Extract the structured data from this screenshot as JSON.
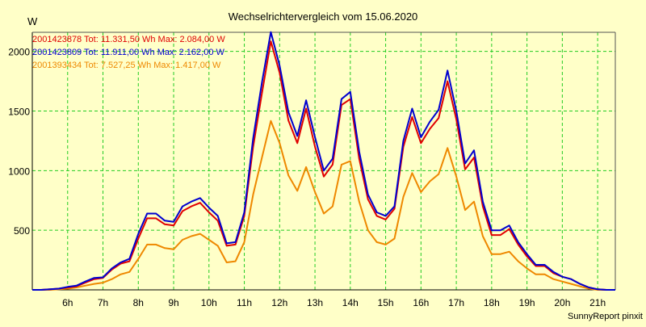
{
  "chart_data": {
    "type": "line",
    "title": "Wechselrichtervergleich vom 15.06.2020",
    "ylabel": "W",
    "xlabel": "",
    "footer": "SunnyReport pinxit",
    "ylim": [
      0,
      2160
    ],
    "xlim": [
      5.0,
      21.5
    ],
    "yticks": [
      500,
      1000,
      1500,
      2000
    ],
    "xtick_values": [
      6,
      7,
      8,
      9,
      10,
      11,
      12,
      13,
      14,
      15,
      16,
      17,
      18,
      19,
      20,
      21
    ],
    "xtick_labels": [
      "6h",
      "7h",
      "8h",
      "9h",
      "10h",
      "11h",
      "12h",
      "13h",
      "14h",
      "15h",
      "16h",
      "17h",
      "18h",
      "19h",
      "20h",
      "21h"
    ],
    "grid": true,
    "legend_position": "top-left",
    "x": [
      5.0,
      5.25,
      5.5,
      5.75,
      6.0,
      6.25,
      6.5,
      6.75,
      7.0,
      7.25,
      7.5,
      7.75,
      8.0,
      8.25,
      8.5,
      8.75,
      9.0,
      9.25,
      9.5,
      9.75,
      10.0,
      10.25,
      10.5,
      10.75,
      11.0,
      11.25,
      11.5,
      11.75,
      12.0,
      12.25,
      12.5,
      12.75,
      13.0,
      13.25,
      13.5,
      13.75,
      14.0,
      14.25,
      14.5,
      14.75,
      15.0,
      15.25,
      15.5,
      15.75,
      16.0,
      16.25,
      16.5,
      16.75,
      17.0,
      17.25,
      17.5,
      17.75,
      18.0,
      18.25,
      18.5,
      18.75,
      19.0,
      19.25,
      19.5,
      19.75,
      20.0,
      20.25,
      20.5,
      20.75,
      21.0,
      21.25,
      21.5
    ],
    "series": [
      {
        "name": "2001423878",
        "legend": "2001423878 Tot: 11.331,50 Wh Max: 2.084,00 W",
        "color": "#e00000",
        "values": [
          0,
          0,
          5,
          10,
          20,
          30,
          60,
          90,
          100,
          170,
          220,
          240,
          430,
          600,
          600,
          550,
          540,
          660,
          700,
          730,
          650,
          580,
          370,
          380,
          620,
          1200,
          1650,
          2084,
          1820,
          1420,
          1230,
          1520,
          1200,
          950,
          1050,
          1550,
          1600,
          1100,
          760,
          620,
          590,
          680,
          1200,
          1450,
          1230,
          1350,
          1440,
          1750,
          1430,
          1010,
          1110,
          700,
          460,
          460,
          510,
          380,
          280,
          200,
          200,
          140,
          110,
          90,
          50,
          20,
          5,
          0,
          0
        ]
      },
      {
        "name": "2001423809",
        "legend": "2001423809 Tot: 11.911,00 Wh Max: 2.162,00 W",
        "color": "#0000d0",
        "values": [
          0,
          0,
          5,
          10,
          25,
          35,
          70,
          100,
          105,
          180,
          230,
          260,
          470,
          640,
          640,
          580,
          570,
          700,
          740,
          770,
          690,
          620,
          390,
          400,
          650,
          1270,
          1740,
          2162,
          1880,
          1490,
          1290,
          1590,
          1280,
          1000,
          1100,
          1600,
          1660,
          1160,
          800,
          650,
          620,
          700,
          1250,
          1520,
          1280,
          1410,
          1510,
          1840,
          1500,
          1060,
          1170,
          740,
          500,
          500,
          540,
          400,
          300,
          210,
          210,
          150,
          110,
          90,
          50,
          20,
          5,
          0,
          0
        ]
      },
      {
        "name": "2001393434",
        "legend": "2001393434 Tot: 7.527,25 Wh Max: 1.417,00 W",
        "color": "#ee8800",
        "values": [
          0,
          0,
          0,
          5,
          10,
          20,
          35,
          50,
          60,
          90,
          130,
          150,
          260,
          380,
          380,
          350,
          340,
          420,
          450,
          470,
          420,
          370,
          230,
          240,
          400,
          800,
          1110,
          1417,
          1230,
          960,
          830,
          1030,
          820,
          640,
          700,
          1050,
          1080,
          740,
          500,
          400,
          380,
          430,
          780,
          980,
          820,
          910,
          970,
          1190,
          950,
          670,
          740,
          450,
          300,
          300,
          320,
          240,
          180,
          130,
          130,
          90,
          70,
          50,
          30,
          10,
          0,
          0,
          0
        ]
      }
    ]
  }
}
